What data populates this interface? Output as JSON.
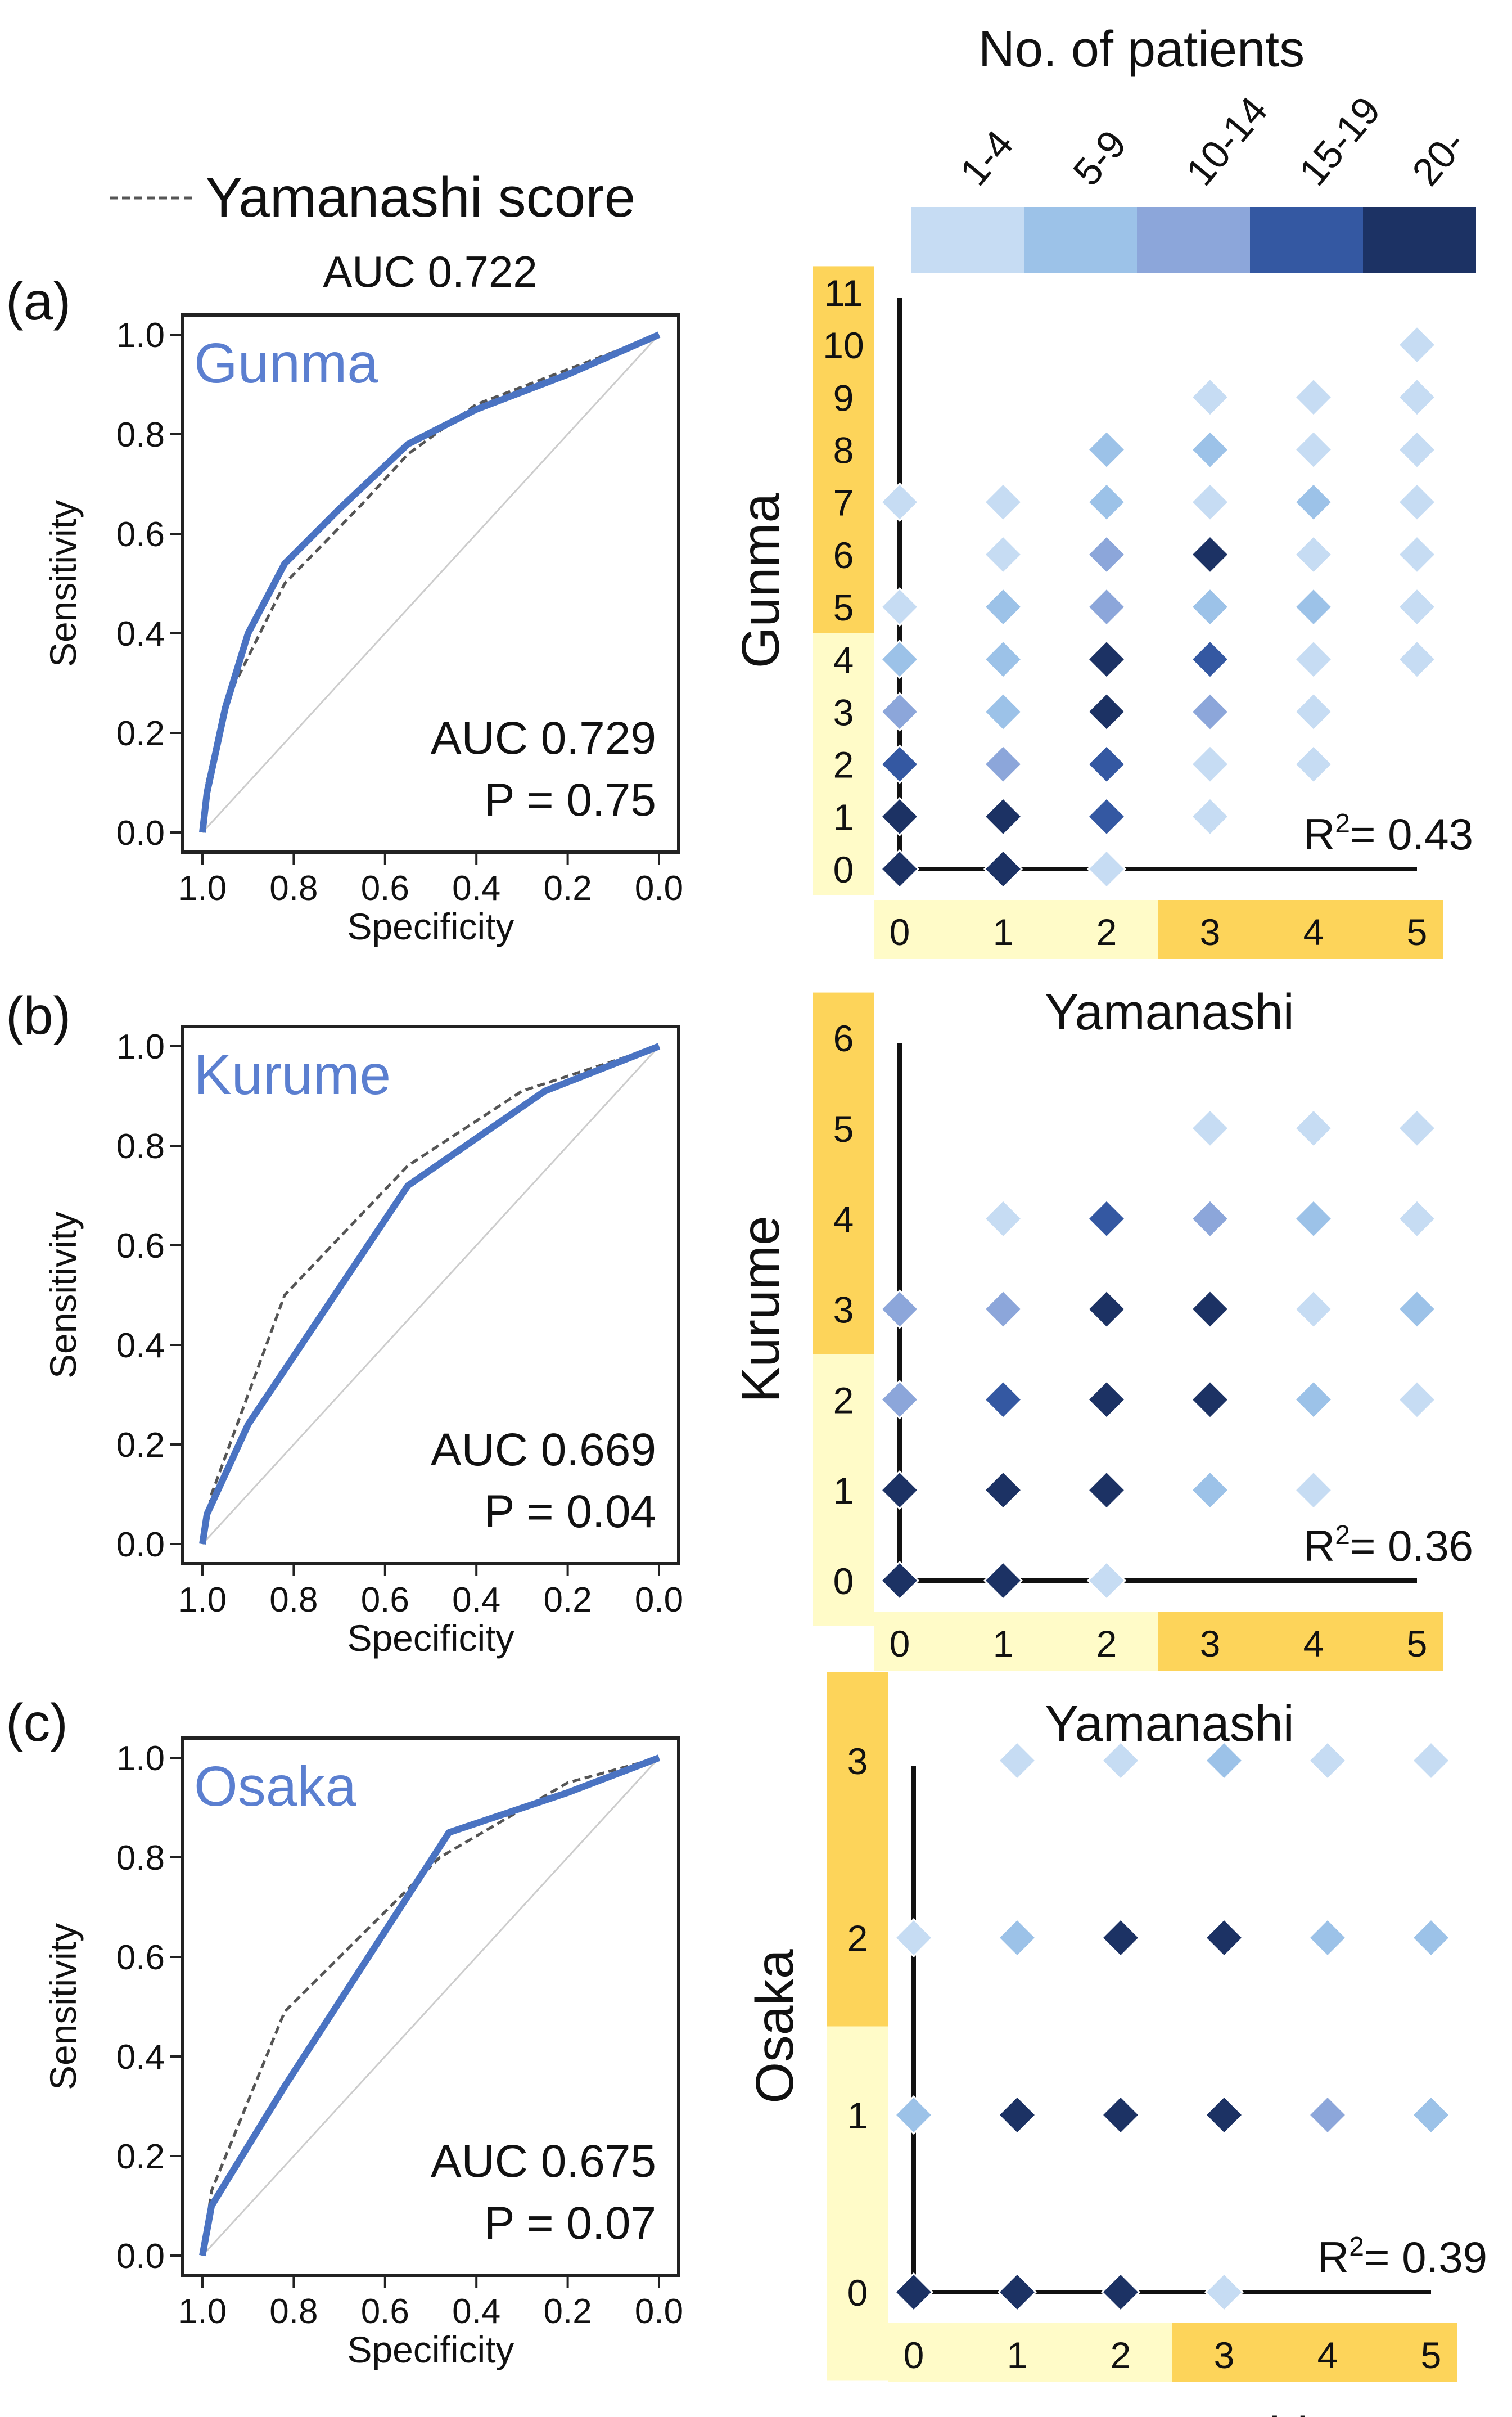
{
  "legend": {
    "title": "No. of patients",
    "bins": [
      {
        "label": "1-4",
        "color": "#c6dcf3"
      },
      {
        "label": "5-9",
        "color": "#9cc2e8"
      },
      {
        "label": "10-14",
        "color": "#8ca6da"
      },
      {
        "label": "15-19",
        "color": "#3458a2"
      },
      {
        "label": "20-",
        "color": "#1c3264"
      }
    ],
    "ref_line_label": "Yamanashi score",
    "ref_auc": "AUC 0.722"
  },
  "colors": {
    "curve": "#4a73c2",
    "ref": "#555555",
    "diag": "#cccccc",
    "hl_light": "#fffbc8",
    "hl_dark": "#fdd45a"
  },
  "chart_data": [
    {
      "type": "line",
      "panel_letter": "(a)",
      "site": "Gunma",
      "xlabel": "Specificity",
      "ylabel": "Sensitivity",
      "x_reversed": true,
      "xticks": [
        "1.0",
        "0.8",
        "0.6",
        "0.4",
        "0.2",
        "0.0"
      ],
      "yticks": [
        "0.0",
        "0.2",
        "0.4",
        "0.6",
        "0.8",
        "1.0"
      ],
      "auc": "AUC 0.729",
      "p": "P = 0.75",
      "series": [
        {
          "points": [
            [
              1.0,
              0.0
            ],
            [
              0.99,
              0.08
            ],
            [
              0.95,
              0.25
            ],
            [
              0.9,
              0.4
            ],
            [
              0.82,
              0.54
            ],
            [
              0.7,
              0.65
            ],
            [
              0.55,
              0.78
            ],
            [
              0.4,
              0.85
            ],
            [
              0.2,
              0.92
            ],
            [
              0.0,
              1.0
            ]
          ]
        },
        {
          "points": [
            [
              1.0,
              0.0
            ],
            [
              0.99,
              0.1
            ],
            [
              0.95,
              0.26
            ],
            [
              0.82,
              0.5
            ],
            [
              0.65,
              0.66
            ],
            [
              0.55,
              0.76
            ],
            [
              0.4,
              0.86
            ],
            [
              0.2,
              0.93
            ],
            [
              0.0,
              1.0
            ]
          ]
        }
      ]
    },
    {
      "type": "scatter",
      "site": "Gunma",
      "xlabel": "Yamanashi",
      "ylabel": "Gunma",
      "xticks": [
        "0",
        "1",
        "2",
        "3",
        "4",
        "5"
      ],
      "yticks": [
        "0",
        "1",
        "2",
        "3",
        "4",
        "5",
        "6",
        "7",
        "8",
        "9",
        "10",
        "11"
      ],
      "x_high_from": 3,
      "y_high_from": 5,
      "r2": "0.43",
      "r2_prefix": "R",
      "r2_sup": "2",
      "r2_suffix": "= 0.43",
      "points": [
        [
          0,
          0,
          5
        ],
        [
          1,
          0,
          5
        ],
        [
          2,
          0,
          1
        ],
        [
          0,
          1,
          5
        ],
        [
          1,
          1,
          5
        ],
        [
          2,
          1,
          4
        ],
        [
          3,
          1,
          1
        ],
        [
          0,
          2,
          4
        ],
        [
          1,
          2,
          3
        ],
        [
          2,
          2,
          4
        ],
        [
          3,
          2,
          1
        ],
        [
          4,
          2,
          1
        ],
        [
          0,
          3,
          3
        ],
        [
          1,
          3,
          2
        ],
        [
          2,
          3,
          5
        ],
        [
          3,
          3,
          3
        ],
        [
          4,
          3,
          1
        ],
        [
          0,
          4,
          2
        ],
        [
          1,
          4,
          2
        ],
        [
          2,
          4,
          5
        ],
        [
          3,
          4,
          4
        ],
        [
          4,
          4,
          1
        ],
        [
          5,
          4,
          1
        ],
        [
          0,
          5,
          1
        ],
        [
          1,
          5,
          2
        ],
        [
          2,
          5,
          3
        ],
        [
          3,
          5,
          2
        ],
        [
          4,
          5,
          2
        ],
        [
          5,
          5,
          1
        ],
        [
          1,
          6,
          1
        ],
        [
          2,
          6,
          3
        ],
        [
          3,
          6,
          5
        ],
        [
          4,
          6,
          1
        ],
        [
          5,
          6,
          1
        ],
        [
          0,
          7,
          1
        ],
        [
          1,
          7,
          1
        ],
        [
          2,
          7,
          2
        ],
        [
          3,
          7,
          1
        ],
        [
          4,
          7,
          2
        ],
        [
          5,
          7,
          1
        ],
        [
          2,
          8,
          2
        ],
        [
          3,
          8,
          2
        ],
        [
          4,
          8,
          1
        ],
        [
          5,
          8,
          1
        ],
        [
          3,
          9,
          1
        ],
        [
          4,
          9,
          1
        ],
        [
          5,
          9,
          1
        ],
        [
          5,
          10,
          1
        ]
      ]
    },
    {
      "type": "line",
      "panel_letter": "(b)",
      "site": "Kurume",
      "xlabel": "Specificity",
      "ylabel": "Sensitivity",
      "x_reversed": true,
      "xticks": [
        "1.0",
        "0.8",
        "0.6",
        "0.4",
        "0.2",
        "0.0"
      ],
      "yticks": [
        "0.0",
        "0.2",
        "0.4",
        "0.6",
        "0.8",
        "1.0"
      ],
      "auc": "AUC 0.669",
      "p": "P = 0.04",
      "series": [
        {
          "points": [
            [
              1.0,
              0.0
            ],
            [
              0.99,
              0.06
            ],
            [
              0.9,
              0.24
            ],
            [
              0.55,
              0.72
            ],
            [
              0.25,
              0.91
            ],
            [
              0.0,
              1.0
            ]
          ]
        },
        {
          "points": [
            [
              1.0,
              0.0
            ],
            [
              0.98,
              0.1
            ],
            [
              0.82,
              0.5
            ],
            [
              0.55,
              0.76
            ],
            [
              0.3,
              0.91
            ],
            [
              0.0,
              1.0
            ]
          ]
        }
      ]
    },
    {
      "type": "scatter",
      "site": "Kurume",
      "xlabel": "Yamanashi",
      "ylabel": "Kurume",
      "xticks": [
        "0",
        "1",
        "2",
        "3",
        "4",
        "5"
      ],
      "yticks": [
        "0",
        "1",
        "2",
        "3",
        "4",
        "5",
        "6"
      ],
      "x_high_from": 3,
      "y_high_from": 3,
      "r2": "0.36",
      "r2_prefix": "R",
      "r2_sup": "2",
      "r2_suffix": "= 0.36",
      "points": [
        [
          0,
          0,
          5
        ],
        [
          1,
          0,
          5
        ],
        [
          2,
          0,
          1
        ],
        [
          0,
          1,
          5
        ],
        [
          1,
          1,
          5
        ],
        [
          2,
          1,
          5
        ],
        [
          3,
          1,
          2
        ],
        [
          4,
          1,
          1
        ],
        [
          0,
          2,
          3
        ],
        [
          1,
          2,
          4
        ],
        [
          2,
          2,
          5
        ],
        [
          3,
          2,
          5
        ],
        [
          4,
          2,
          2
        ],
        [
          5,
          2,
          1
        ],
        [
          0,
          3,
          3
        ],
        [
          1,
          3,
          3
        ],
        [
          2,
          3,
          5
        ],
        [
          3,
          3,
          5
        ],
        [
          4,
          3,
          1
        ],
        [
          5,
          3,
          2
        ],
        [
          1,
          4,
          1
        ],
        [
          2,
          4,
          4
        ],
        [
          3,
          4,
          3
        ],
        [
          4,
          4,
          2
        ],
        [
          5,
          4,
          1
        ],
        [
          3,
          5,
          1
        ],
        [
          4,
          5,
          1
        ],
        [
          5,
          5,
          1
        ]
      ]
    },
    {
      "type": "line",
      "panel_letter": "(c)",
      "site": "Osaka",
      "xlabel": "Specificity",
      "ylabel": "Sensitivity",
      "x_reversed": true,
      "xticks": [
        "1.0",
        "0.8",
        "0.6",
        "0.4",
        "0.2",
        "0.0"
      ],
      "yticks": [
        "0.0",
        "0.2",
        "0.4",
        "0.6",
        "0.8",
        "1.0"
      ],
      "auc": "AUC 0.675",
      "p": "P = 0.07",
      "series": [
        {
          "points": [
            [
              1.0,
              0.0
            ],
            [
              0.98,
              0.1
            ],
            [
              0.82,
              0.34
            ],
            [
              0.46,
              0.85
            ],
            [
              0.2,
              0.93
            ],
            [
              0.0,
              1.0
            ]
          ]
        },
        {
          "points": [
            [
              1.0,
              0.0
            ],
            [
              0.98,
              0.13
            ],
            [
              0.82,
              0.49
            ],
            [
              0.48,
              0.8
            ],
            [
              0.2,
              0.95
            ],
            [
              0.0,
              1.0
            ]
          ]
        }
      ]
    },
    {
      "type": "scatter",
      "site": "Osaka",
      "xlabel": "Yamanashi",
      "ylabel": "Osaka",
      "xticks": [
        "0",
        "1",
        "2",
        "3",
        "4",
        "5"
      ],
      "yticks": [
        "0",
        "1",
        "2",
        "3"
      ],
      "x_high_from": 3,
      "y_high_from": 2,
      "r2": "0.39",
      "r2_prefix": "R",
      "r2_sup": "2",
      "r2_suffix": "= 0.39",
      "points": [
        [
          0,
          0,
          5
        ],
        [
          1,
          0,
          5
        ],
        [
          2,
          0,
          5
        ],
        [
          3,
          0,
          1
        ],
        [
          0,
          1,
          2
        ],
        [
          1,
          1,
          5
        ],
        [
          2,
          1,
          5
        ],
        [
          3,
          1,
          5
        ],
        [
          4,
          1,
          3
        ],
        [
          5,
          1,
          2
        ],
        [
          0,
          2,
          1
        ],
        [
          1,
          2,
          2
        ],
        [
          2,
          2,
          5
        ],
        [
          3,
          2,
          5
        ],
        [
          4,
          2,
          2
        ],
        [
          5,
          2,
          2
        ],
        [
          1,
          3,
          1
        ],
        [
          2,
          3,
          1
        ],
        [
          3,
          3,
          2
        ],
        [
          4,
          3,
          1
        ],
        [
          5,
          3,
          1
        ]
      ]
    }
  ]
}
